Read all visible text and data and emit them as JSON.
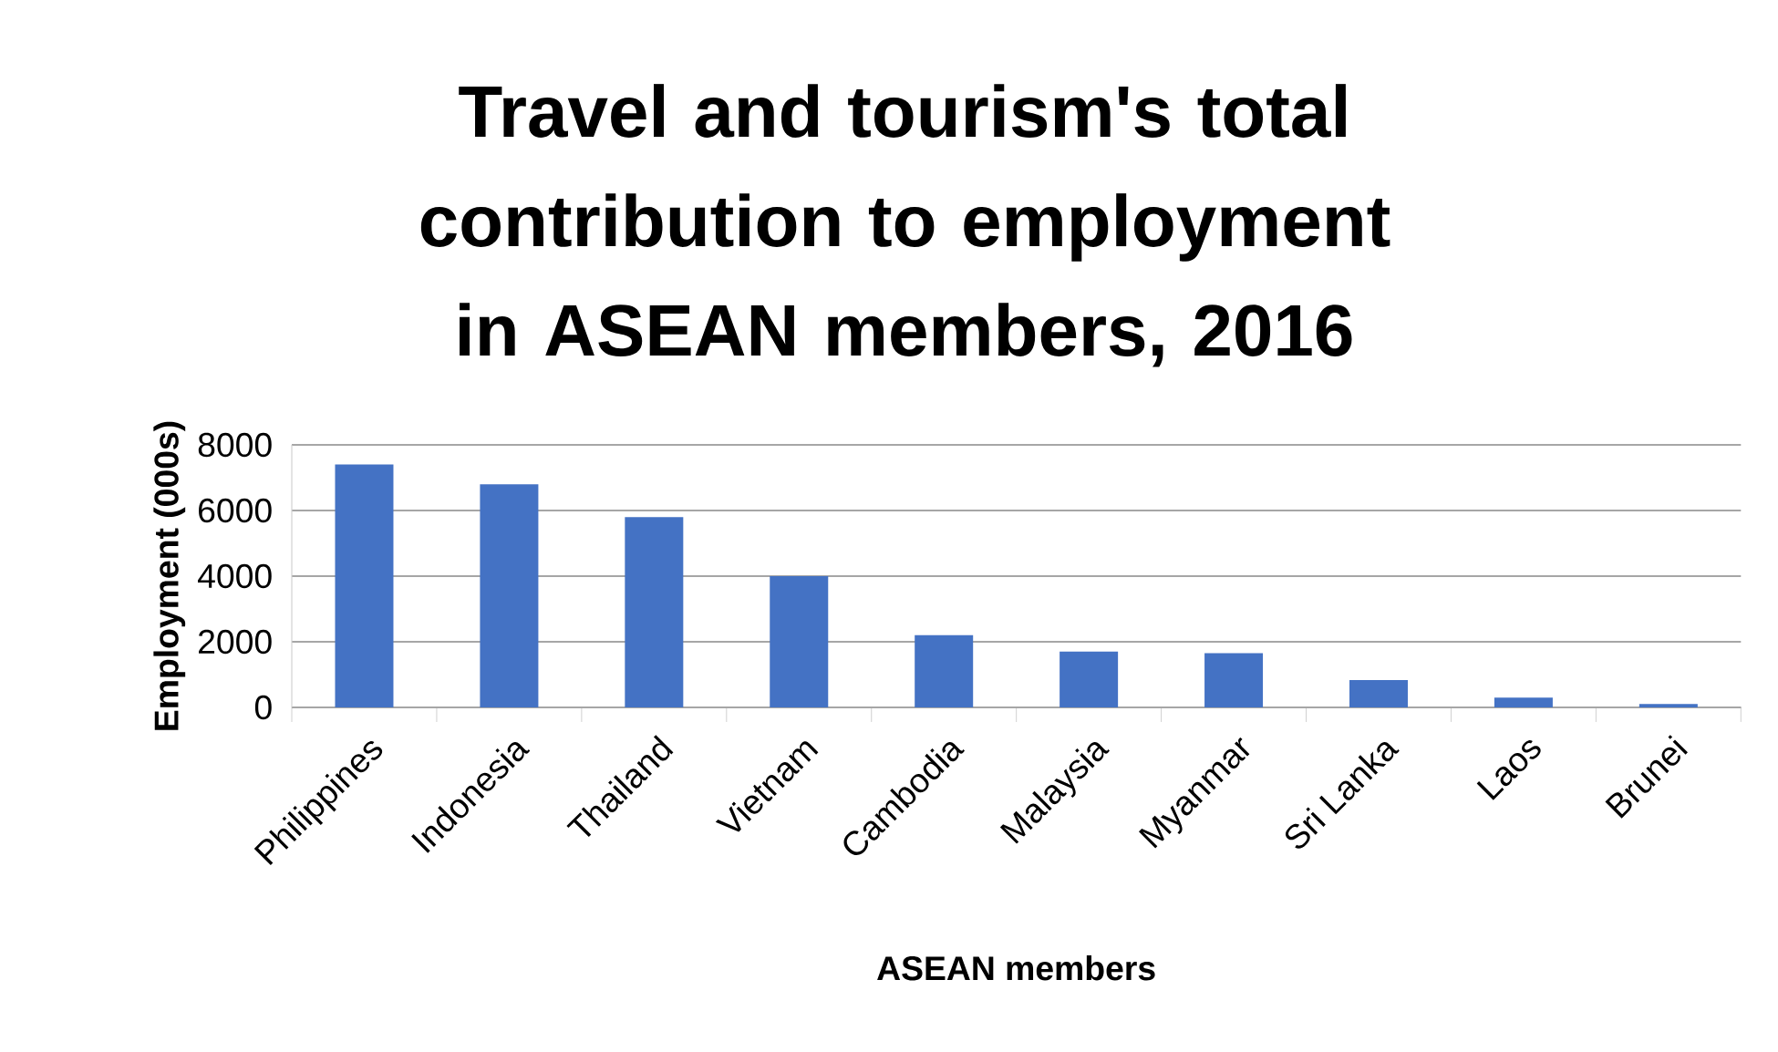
{
  "chart_data": {
    "type": "bar",
    "title": "Travel and tourism's total contribution to employment in ASEAN members, 2016",
    "xlabel": "ASEAN members",
    "ylabel": "Employment (000s)",
    "categories": [
      "Philippines",
      "Indonesia",
      "Thailand",
      "Vietnam",
      "Cambodia",
      "Malaysia",
      "Myanmar",
      "Sri Lanka",
      "Laos",
      "Brunei"
    ],
    "values": [
      7400,
      6800,
      5800,
      4000,
      2200,
      1700,
      1650,
      830,
      300,
      100
    ],
    "color": "#4472c4",
    "ylim": [
      0,
      8000
    ],
    "yticks": [
      0,
      2000,
      4000,
      6000,
      8000
    ],
    "grid": "y"
  }
}
